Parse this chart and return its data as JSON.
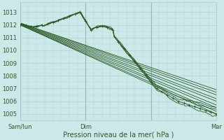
{
  "bg_color": "#cce8e8",
  "grid_color": "#aacccc",
  "line_color": "#2d5a27",
  "text_color": "#2d5a27",
  "ylabel_ticks": [
    1005,
    1006,
    1007,
    1008,
    1009,
    1010,
    1011,
    1012,
    1013
  ],
  "xlim": [
    0,
    72
  ],
  "ylim": [
    1004.5,
    1013.8
  ],
  "xlabel": "Pression niveau de la mer( hPa )",
  "xtick_positions": [
    0,
    24,
    48,
    72
  ],
  "xtick_labels": [
    "Sam/lun",
    "Dim",
    "",
    "Mar"
  ],
  "vline_color": "#7aaa9a"
}
